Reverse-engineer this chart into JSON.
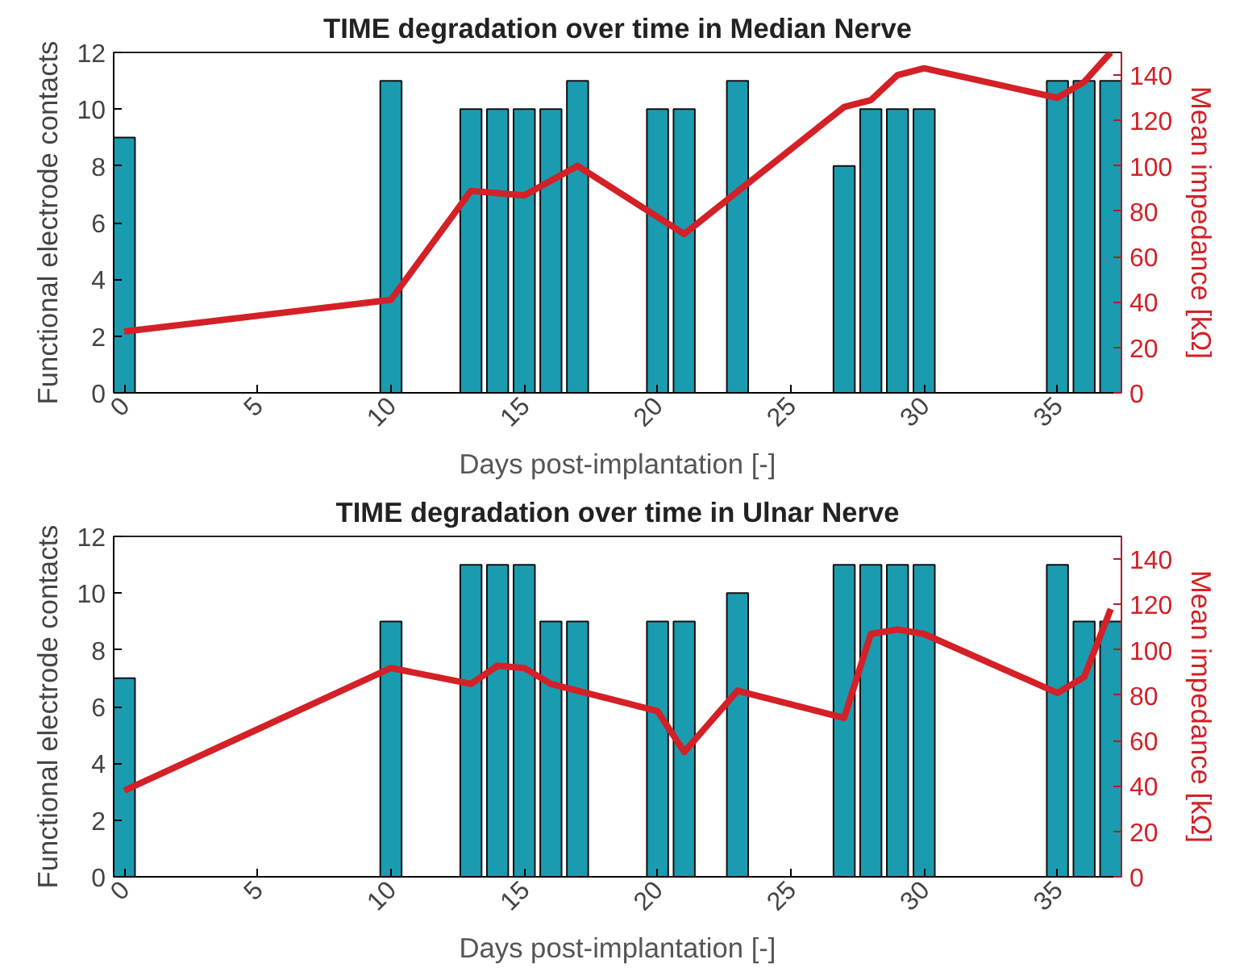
{
  "chart_data": [
    {
      "type": "bar",
      "title": "TIME degradation over time in Median Nerve",
      "xlabel": "Days post-implantation [-]",
      "ylabel": "Functional electrode contacts",
      "y2label": "Mean impedance [kΩ]",
      "xlim": [
        -0.4,
        37.4
      ],
      "xticks": [
        0,
        5,
        10,
        15,
        20,
        25,
        30,
        35
      ],
      "ylim": [
        0,
        12
      ],
      "yticks": [
        0,
        2,
        4,
        6,
        8,
        10,
        12
      ],
      "y2lim": [
        0,
        150
      ],
      "y2ticks": [
        0,
        20,
        40,
        60,
        80,
        100,
        120,
        140
      ],
      "series": [
        {
          "color": "#1b9bb0",
          "x": [
            0,
            10,
            13,
            14,
            15,
            16,
            17,
            20,
            21,
            23,
            27,
            28,
            29,
            30,
            35,
            36,
            37
          ],
          "values": [
            9,
            11,
            10,
            10,
            10,
            10,
            11,
            10,
            10,
            11,
            8,
            10,
            10,
            10,
            11,
            11,
            11
          ]
        },
        {
          "type": "line",
          "axis": "y2",
          "color": "#d42027",
          "x": [
            0,
            10,
            13,
            15,
            17,
            21,
            27,
            28,
            29,
            30,
            35,
            36,
            37
          ],
          "values": [
            27,
            41,
            89,
            87,
            100,
            70,
            126,
            129,
            140,
            143,
            130,
            137,
            150
          ]
        }
      ]
    },
    {
      "type": "bar",
      "title": "TIME degradation over time in Ulnar Nerve",
      "xlabel": "Days post-implantation [-]",
      "ylabel": "Functional electrode contacts",
      "y2label": "Mean impedance [kΩ]",
      "xlim": [
        -0.4,
        37.4
      ],
      "xticks": [
        0,
        5,
        10,
        15,
        20,
        25,
        30,
        35
      ],
      "ylim": [
        0,
        12
      ],
      "yticks": [
        0,
        2,
        4,
        6,
        8,
        10,
        12
      ],
      "y2lim": [
        0,
        150
      ],
      "y2ticks": [
        0,
        20,
        40,
        60,
        80,
        100,
        120,
        140
      ],
      "series": [
        {
          "color": "#1b9bb0",
          "x": [
            0,
            10,
            13,
            14,
            15,
            16,
            17,
            20,
            21,
            23,
            27,
            28,
            29,
            30,
            35,
            36,
            37
          ],
          "values": [
            7,
            9,
            11,
            11,
            11,
            9,
            9,
            9,
            9,
            10,
            11,
            11,
            11,
            11,
            11,
            9,
            9
          ]
        },
        {
          "type": "line",
          "axis": "y2",
          "color": "#d42027",
          "x": [
            0,
            10,
            13,
            14,
            15,
            16,
            17,
            20,
            21,
            23,
            27,
            28,
            29,
            30,
            35,
            36,
            37
          ],
          "values": [
            38,
            92,
            85,
            93,
            92,
            85,
            82,
            73,
            55,
            82,
            70,
            107,
            109,
            107,
            81,
            88,
            118
          ]
        }
      ]
    }
  ]
}
